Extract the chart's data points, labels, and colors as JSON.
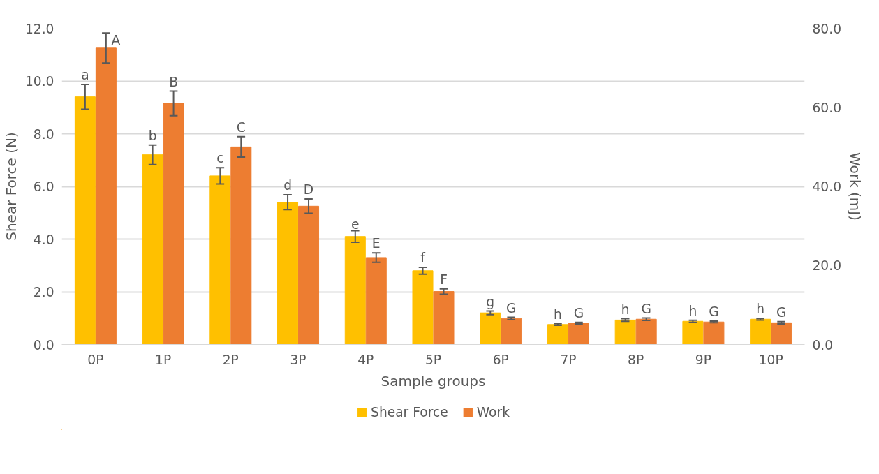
{
  "chart_data": {
    "type": "bar",
    "xlabel": "Sample groups",
    "ylabel": "Shear Force (N)",
    "y2label": "Work (mJ)",
    "categories": [
      "0P",
      "1P",
      "2P",
      "3P",
      "4P",
      "5P",
      "6P",
      "7P",
      "8P",
      "9P",
      "10P"
    ],
    "series": [
      {
        "name": "Shear Force",
        "color": "#ffc000",
        "values": [
          9.4,
          7.2,
          6.4,
          5.4,
          4.1,
          2.8,
          1.2,
          0.76,
          0.93,
          0.88,
          0.96
        ],
        "errors": [
          0.47,
          0.37,
          0.31,
          0.28,
          0.22,
          0.13,
          0.07,
          0.03,
          0.05,
          0.04,
          0.03
        ],
        "value_labels": [
          "a",
          "b",
          "c",
          "d",
          "e",
          "f",
          "g",
          "h",
          "h",
          "h",
          "h"
        ]
      },
      {
        "name": "Work",
        "color": "#ed7d31",
        "axis": "y2",
        "values": [
          75,
          61,
          50,
          35,
          22,
          13.4,
          6.6,
          5.4,
          6.4,
          5.7,
          5.5
        ],
        "errors": [
          3.8,
          3.1,
          2.6,
          1.8,
          1.2,
          0.7,
          0.3,
          0.2,
          0.3,
          0.2,
          0.3
        ],
        "value_labels": [
          "A",
          "B",
          "C",
          "D",
          "E",
          "F",
          "G",
          "G",
          "G",
          "G",
          "G"
        ]
      }
    ],
    "ylim": [
      0,
      12
    ],
    "yticks": [
      {
        "value": 0,
        "label": "0.0"
      },
      {
        "value": 2,
        "label": "2.0"
      },
      {
        "value": 4,
        "label": "4.0"
      },
      {
        "value": 6,
        "label": "6.0"
      },
      {
        "value": 8,
        "label": "8.0"
      },
      {
        "value": 10,
        "label": "10.0"
      },
      {
        "value": 12,
        "label": "12.0"
      }
    ],
    "y2lim": [
      0,
      80
    ],
    "y2ticks": [
      {
        "value": 0,
        "label": "0.0"
      },
      {
        "value": 20,
        "label": "20.0"
      },
      {
        "value": 40,
        "label": "40.0"
      },
      {
        "value": 60,
        "label": "60.0"
      },
      {
        "value": 80,
        "label": "80.0"
      }
    ],
    "grid": "y",
    "legend": "bottom"
  }
}
